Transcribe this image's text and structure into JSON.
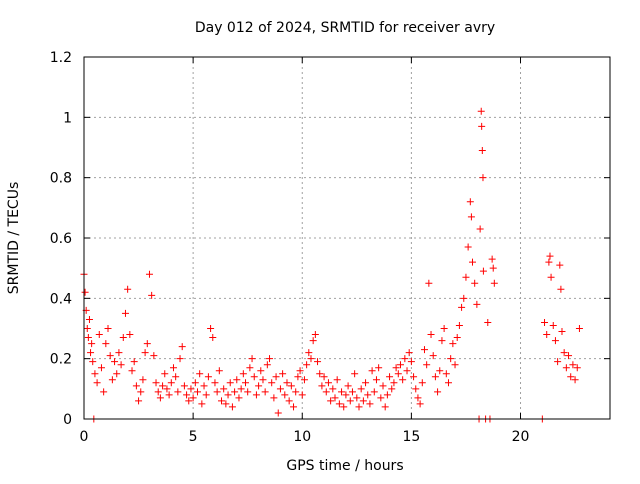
{
  "chart_data": {
    "type": "scatter",
    "title": "Day 012 of 2024, SRMTID for receiver avry",
    "xlabel": "GPS time / hours",
    "ylabel": "SRMTID / TECUs",
    "xlim": [
      0,
      24.1
    ],
    "ylim": [
      0,
      1.2
    ],
    "xticks": [
      {
        "value": 0,
        "label": "0"
      },
      {
        "value": 5,
        "label": "5"
      },
      {
        "value": 10,
        "label": "10"
      },
      {
        "value": 15,
        "label": "15"
      },
      {
        "value": 20,
        "label": "20"
      }
    ],
    "yticks": [
      {
        "value": 0,
        "label": "0"
      },
      {
        "value": 0.2,
        "label": "0.2"
      },
      {
        "value": 0.4,
        "label": "0.4"
      },
      {
        "value": 0.6,
        "label": "0.6"
      },
      {
        "value": 0.8,
        "label": "0.8"
      },
      {
        "value": 1.0,
        "label": "1"
      },
      {
        "value": 1.2,
        "label": "1.2"
      }
    ],
    "grid": true,
    "series": [
      {
        "name": "SRMTID",
        "color": "#ff0000",
        "marker": "plus",
        "points": [
          [
            0.0,
            0.48
          ],
          [
            0.05,
            0.42
          ],
          [
            0.1,
            0.36
          ],
          [
            0.15,
            0.3
          ],
          [
            0.2,
            0.27
          ],
          [
            0.25,
            0.33
          ],
          [
            0.3,
            0.22
          ],
          [
            0.35,
            0.25
          ],
          [
            0.4,
            0.19
          ],
          [
            0.45,
            0.0
          ],
          [
            0.5,
            0.15
          ],
          [
            0.6,
            0.12
          ],
          [
            0.7,
            0.28
          ],
          [
            0.8,
            0.17
          ],
          [
            0.9,
            0.09
          ],
          [
            1.0,
            0.25
          ],
          [
            1.1,
            0.3
          ],
          [
            1.2,
            0.21
          ],
          [
            1.3,
            0.13
          ],
          [
            1.4,
            0.19
          ],
          [
            1.5,
            0.15
          ],
          [
            1.6,
            0.22
          ],
          [
            1.7,
            0.18
          ],
          [
            1.8,
            0.27
          ],
          [
            1.9,
            0.35
          ],
          [
            2.0,
            0.43
          ],
          [
            2.1,
            0.28
          ],
          [
            2.2,
            0.16
          ],
          [
            2.3,
            0.19
          ],
          [
            2.4,
            0.11
          ],
          [
            2.5,
            0.06
          ],
          [
            2.6,
            0.09
          ],
          [
            2.7,
            0.13
          ],
          [
            2.8,
            0.22
          ],
          [
            2.9,
            0.25
          ],
          [
            3.0,
            0.48
          ],
          [
            3.1,
            0.41
          ],
          [
            3.2,
            0.21
          ],
          [
            3.3,
            0.12
          ],
          [
            3.4,
            0.09
          ],
          [
            3.5,
            0.07
          ],
          [
            3.6,
            0.11
          ],
          [
            3.7,
            0.15
          ],
          [
            3.8,
            0.1
          ],
          [
            3.9,
            0.08
          ],
          [
            4.0,
            0.12
          ],
          [
            4.1,
            0.17
          ],
          [
            4.2,
            0.14
          ],
          [
            4.3,
            0.09
          ],
          [
            4.4,
            0.2
          ],
          [
            4.5,
            0.24
          ],
          [
            4.6,
            0.11
          ],
          [
            4.7,
            0.08
          ],
          [
            4.8,
            0.06
          ],
          [
            4.9,
            0.1
          ],
          [
            5.0,
            0.07
          ],
          [
            5.1,
            0.12
          ],
          [
            5.2,
            0.09
          ],
          [
            5.3,
            0.15
          ],
          [
            5.4,
            0.05
          ],
          [
            5.5,
            0.11
          ],
          [
            5.6,
            0.08
          ],
          [
            5.7,
            0.14
          ],
          [
            5.8,
            0.3
          ],
          [
            5.9,
            0.27
          ],
          [
            6.0,
            0.12
          ],
          [
            6.1,
            0.09
          ],
          [
            6.2,
            0.16
          ],
          [
            6.3,
            0.06
          ],
          [
            6.4,
            0.1
          ],
          [
            6.5,
            0.05
          ],
          [
            6.6,
            0.08
          ],
          [
            6.7,
            0.12
          ],
          [
            6.8,
            0.04
          ],
          [
            6.9,
            0.09
          ],
          [
            7.0,
            0.13
          ],
          [
            7.1,
            0.07
          ],
          [
            7.2,
            0.1
          ],
          [
            7.3,
            0.15
          ],
          [
            7.4,
            0.12
          ],
          [
            7.5,
            0.09
          ],
          [
            7.6,
            0.17
          ],
          [
            7.7,
            0.2
          ],
          [
            7.8,
            0.14
          ],
          [
            7.9,
            0.08
          ],
          [
            8.0,
            0.11
          ],
          [
            8.1,
            0.16
          ],
          [
            8.2,
            0.13
          ],
          [
            8.3,
            0.09
          ],
          [
            8.4,
            0.18
          ],
          [
            8.5,
            0.2
          ],
          [
            8.6,
            0.12
          ],
          [
            8.7,
            0.07
          ],
          [
            8.8,
            0.14
          ],
          [
            8.9,
            0.02
          ],
          [
            9.0,
            0.1
          ],
          [
            9.1,
            0.15
          ],
          [
            9.2,
            0.08
          ],
          [
            9.3,
            0.12
          ],
          [
            9.4,
            0.06
          ],
          [
            9.5,
            0.11
          ],
          [
            9.6,
            0.04
          ],
          [
            9.7,
            0.09
          ],
          [
            9.8,
            0.14
          ],
          [
            9.9,
            0.16
          ],
          [
            10.0,
            0.08
          ],
          [
            10.1,
            0.13
          ],
          [
            10.2,
            0.18
          ],
          [
            10.3,
            0.22
          ],
          [
            10.4,
            0.2
          ],
          [
            10.5,
            0.26
          ],
          [
            10.6,
            0.28
          ],
          [
            10.7,
            0.19
          ],
          [
            10.8,
            0.15
          ],
          [
            10.9,
            0.11
          ],
          [
            11.0,
            0.14
          ],
          [
            11.1,
            0.09
          ],
          [
            11.2,
            0.12
          ],
          [
            11.3,
            0.06
          ],
          [
            11.4,
            0.1
          ],
          [
            11.5,
            0.07
          ],
          [
            11.6,
            0.13
          ],
          [
            11.7,
            0.05
          ],
          [
            11.8,
            0.09
          ],
          [
            11.9,
            0.04
          ],
          [
            12.0,
            0.08
          ],
          [
            12.1,
            0.11
          ],
          [
            12.2,
            0.06
          ],
          [
            12.3,
            0.09
          ],
          [
            12.4,
            0.15
          ],
          [
            12.5,
            0.07
          ],
          [
            12.6,
            0.04
          ],
          [
            12.7,
            0.1
          ],
          [
            12.8,
            0.06
          ],
          [
            12.9,
            0.12
          ],
          [
            13.0,
            0.08
          ],
          [
            13.1,
            0.05
          ],
          [
            13.2,
            0.16
          ],
          [
            13.3,
            0.09
          ],
          [
            13.4,
            0.13
          ],
          [
            13.5,
            0.17
          ],
          [
            13.6,
            0.07
          ],
          [
            13.7,
            0.11
          ],
          [
            13.8,
            0.04
          ],
          [
            13.9,
            0.08
          ],
          [
            14.0,
            0.14
          ],
          [
            14.1,
            0.1
          ],
          [
            14.2,
            0.12
          ],
          [
            14.3,
            0.17
          ],
          [
            14.4,
            0.15
          ],
          [
            14.5,
            0.18
          ],
          [
            14.6,
            0.13
          ],
          [
            14.7,
            0.2
          ],
          [
            14.8,
            0.16
          ],
          [
            14.9,
            0.22
          ],
          [
            15.0,
            0.19
          ],
          [
            15.1,
            0.14
          ],
          [
            15.2,
            0.1
          ],
          [
            15.3,
            0.07
          ],
          [
            15.4,
            0.05
          ],
          [
            15.5,
            0.12
          ],
          [
            15.6,
            0.23
          ],
          [
            15.7,
            0.18
          ],
          [
            15.8,
            0.45
          ],
          [
            15.9,
            0.28
          ],
          [
            16.0,
            0.21
          ],
          [
            16.1,
            0.14
          ],
          [
            16.2,
            0.09
          ],
          [
            16.3,
            0.16
          ],
          [
            16.4,
            0.26
          ],
          [
            16.5,
            0.3
          ],
          [
            16.6,
            0.15
          ],
          [
            16.7,
            0.12
          ],
          [
            16.8,
            0.2
          ],
          [
            16.9,
            0.25
          ],
          [
            17.0,
            0.18
          ],
          [
            17.1,
            0.27
          ],
          [
            17.2,
            0.31
          ],
          [
            17.3,
            0.37
          ],
          [
            17.4,
            0.4
          ],
          [
            17.5,
            0.47
          ],
          [
            17.6,
            0.57
          ],
          [
            17.7,
            0.72
          ],
          [
            17.75,
            0.67
          ],
          [
            17.8,
            0.52
          ],
          [
            17.9,
            0.45
          ],
          [
            18.0,
            0.38
          ],
          [
            18.1,
            0.0
          ],
          [
            18.15,
            0.63
          ],
          [
            18.2,
            1.02
          ],
          [
            18.22,
            0.97
          ],
          [
            18.25,
            0.89
          ],
          [
            18.28,
            0.8
          ],
          [
            18.3,
            0.49
          ],
          [
            18.4,
            0.0
          ],
          [
            18.5,
            0.32
          ],
          [
            18.6,
            0.0
          ],
          [
            18.7,
            0.53
          ],
          [
            18.75,
            0.5
          ],
          [
            18.8,
            0.45
          ],
          [
            21.0,
            0.0
          ],
          [
            21.1,
            0.32
          ],
          [
            21.2,
            0.28
          ],
          [
            21.3,
            0.52
          ],
          [
            21.35,
            0.54
          ],
          [
            21.4,
            0.47
          ],
          [
            21.5,
            0.31
          ],
          [
            21.6,
            0.26
          ],
          [
            21.7,
            0.19
          ],
          [
            21.8,
            0.51
          ],
          [
            21.85,
            0.43
          ],
          [
            21.9,
            0.29
          ],
          [
            22.0,
            0.22
          ],
          [
            22.1,
            0.17
          ],
          [
            22.2,
            0.21
          ],
          [
            22.3,
            0.14
          ],
          [
            22.4,
            0.18
          ],
          [
            22.5,
            0.13
          ],
          [
            22.6,
            0.17
          ],
          [
            22.7,
            0.3
          ]
        ]
      }
    ]
  }
}
